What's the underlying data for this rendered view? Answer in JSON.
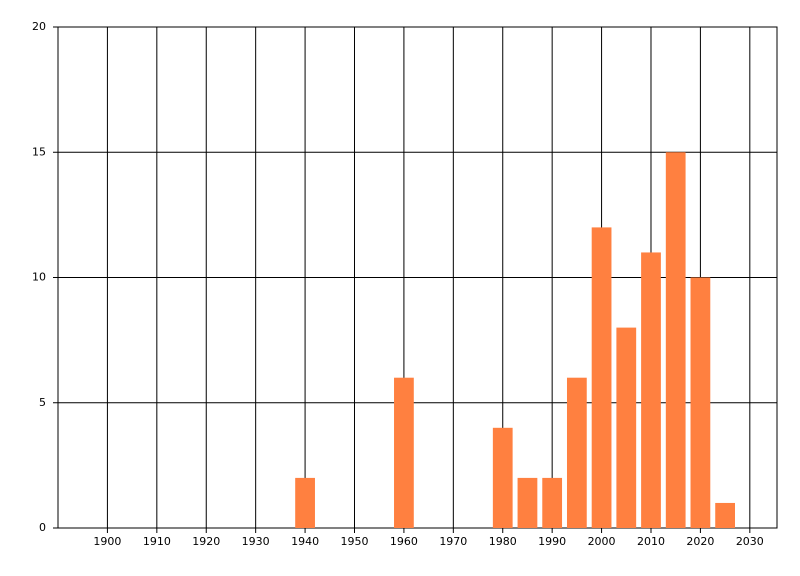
{
  "chart_data": {
    "type": "bar",
    "x": [
      1940,
      1960,
      1980,
      1985,
      1990,
      1995,
      2000,
      2005,
      2010,
      2015,
      2020,
      2025
    ],
    "values": [
      2,
      6,
      4,
      2,
      2,
      6,
      12,
      8,
      11,
      15,
      10,
      1
    ],
    "color": "#ff8040",
    "xlim": [
      1890,
      2035.5
    ],
    "xticks": [
      1900,
      1910,
      1920,
      1930,
      1940,
      1950,
      1960,
      1970,
      1980,
      1990,
      2000,
      2010,
      2020,
      2030
    ],
    "ylim": [
      0,
      20
    ],
    "yticks": [
      0,
      5,
      10,
      15,
      20
    ],
    "grid": true
  }
}
